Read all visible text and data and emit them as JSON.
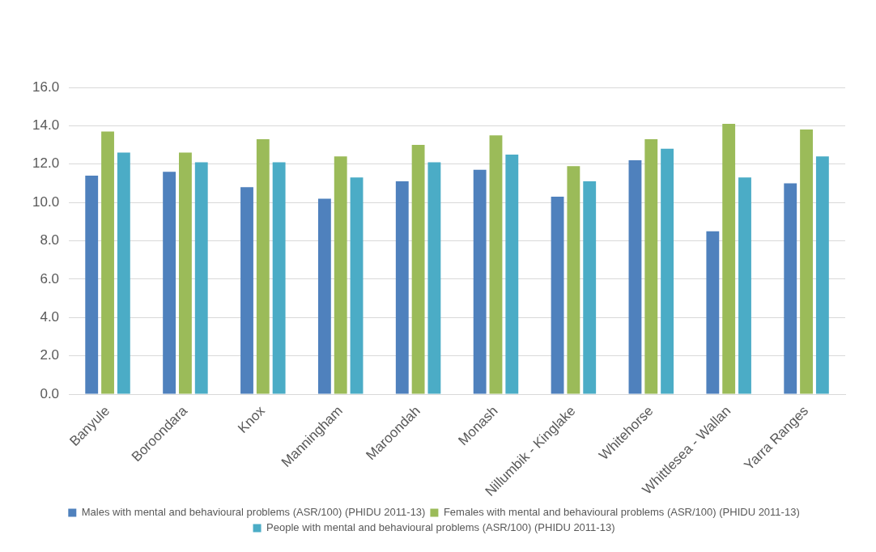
{
  "chart_data": {
    "type": "bar",
    "categories": [
      "Banyule",
      "Boroondara",
      "Knox",
      "Manningham",
      "Maroondah",
      "Monash",
      "Nillumbik - Kinglake",
      "Whitehorse",
      "Whittlesea - Wallan",
      "Yarra Ranges"
    ],
    "series": [
      {
        "name": "Males with mental and behavioural problems (ASR/100) (PHIDU 2011-13)",
        "color": "#4f81bd",
        "values": [
          11.4,
          11.6,
          10.8,
          10.2,
          11.1,
          11.7,
          10.3,
          12.2,
          8.5,
          11.0
        ]
      },
      {
        "name": "Females with mental and behavioural problems (ASR/100) (PHIDU 2011-13)",
        "color": "#9bbb59",
        "values": [
          13.7,
          12.6,
          13.3,
          12.4,
          13.0,
          13.5,
          11.9,
          13.3,
          14.1,
          13.8
        ]
      },
      {
        "name": "People with mental and behavioural problems (ASR/100) (PHIDU 2011-13)",
        "color": "#4bacc6",
        "values": [
          12.6,
          12.1,
          12.1,
          11.3,
          12.1,
          12.5,
          11.1,
          12.8,
          11.3,
          12.4
        ]
      }
    ],
    "ylim": [
      0,
      16
    ],
    "yticks": [
      {
        "value": 0,
        "label": "0.0"
      },
      {
        "value": 2,
        "label": "2.0"
      },
      {
        "value": 4,
        "label": "4.0"
      },
      {
        "value": 6,
        "label": "6.0"
      },
      {
        "value": 8,
        "label": "8.0"
      },
      {
        "value": 10,
        "label": "10.0"
      },
      {
        "value": 12,
        "label": "12.0"
      },
      {
        "value": 14,
        "label": "14.0"
      },
      {
        "value": 16,
        "label": "16.0"
      }
    ],
    "grid": "y",
    "legend": "bottom"
  }
}
